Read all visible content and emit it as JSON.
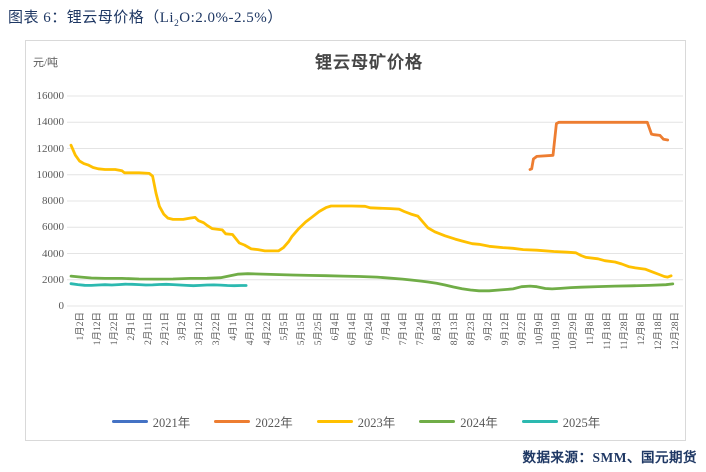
{
  "header": {
    "title_prefix": "图表 6：锂云母价格（Li",
    "title_sub": "2",
    "title_suffix": "O:2.0%-2.5%）"
  },
  "source": {
    "label": "数据来源：SMM、国元期货"
  },
  "chart_data": {
    "type": "line",
    "title": "锂云母矿价格",
    "y_unit": "元/吨",
    "ylim": [
      0,
      16000
    ],
    "y_ticks": [
      0,
      2000,
      4000,
      6000,
      8000,
      10000,
      12000,
      14000,
      16000
    ],
    "grid": "horizontal",
    "legend_position": "bottom",
    "x_tick_labels": [
      "1月2日",
      "1月12日",
      "1月22日",
      "2月1日",
      "2月11日",
      "2月21日",
      "3月2日",
      "3月12日",
      "3月22日",
      "4月1日",
      "4月12日",
      "4月22日",
      "5月5日",
      "5月15日",
      "5月25日",
      "6月4日",
      "6月14日",
      "6月24日",
      "7月4日",
      "7月14日",
      "7月24日",
      "8月3日",
      "8月13日",
      "8月23日",
      "9月2日",
      "9月12日",
      "9月22日",
      "10月9日",
      "10月19日",
      "10月29日",
      "11月8日",
      "11月18日",
      "11月28日",
      "12月8日",
      "12月18日",
      "12月28日"
    ],
    "series": [
      {
        "name": "2021年",
        "color": "#4472C4",
        "points": []
      },
      {
        "name": "2022年",
        "color": "#ED7D31",
        "points": [
          [
            27,
            10400
          ],
          [
            27.1,
            10450
          ],
          [
            27.2,
            11200
          ],
          [
            27.4,
            11400
          ],
          [
            28.35,
            11480
          ],
          [
            28.55,
            13900
          ],
          [
            28.7,
            14000
          ],
          [
            33.9,
            14000
          ],
          [
            34.15,
            13100
          ],
          [
            34.3,
            13050
          ],
          [
            34.65,
            13000
          ],
          [
            34.85,
            12700
          ],
          [
            35.1,
            12650
          ]
        ]
      },
      {
        "name": "2023年",
        "color": "#FFC000",
        "points": [
          [
            0,
            12250
          ],
          [
            0.25,
            11500
          ],
          [
            0.5,
            11050
          ],
          [
            0.75,
            10850
          ],
          [
            1,
            10750
          ],
          [
            1.3,
            10550
          ],
          [
            1.6,
            10450
          ],
          [
            2,
            10400
          ],
          [
            2.6,
            10400
          ],
          [
            3,
            10300
          ],
          [
            3.15,
            10150
          ],
          [
            4,
            10150
          ],
          [
            4.6,
            10100
          ],
          [
            4.8,
            9900
          ],
          [
            5,
            8600
          ],
          [
            5.2,
            7600
          ],
          [
            5.45,
            7000
          ],
          [
            5.7,
            6700
          ],
          [
            6,
            6600
          ],
          [
            6.6,
            6600
          ],
          [
            7,
            6700
          ],
          [
            7.3,
            6750
          ],
          [
            7.5,
            6500
          ],
          [
            7.8,
            6350
          ],
          [
            8,
            6150
          ],
          [
            8.3,
            5900
          ],
          [
            8.9,
            5800
          ],
          [
            9.1,
            5500
          ],
          [
            9.5,
            5450
          ],
          [
            9.9,
            4800
          ],
          [
            10.2,
            4650
          ],
          [
            10.6,
            4350
          ],
          [
            11,
            4300
          ],
          [
            11.4,
            4200
          ],
          [
            12.2,
            4200
          ],
          [
            12.5,
            4450
          ],
          [
            12.8,
            4900
          ],
          [
            13,
            5300
          ],
          [
            13.4,
            5900
          ],
          [
            13.8,
            6400
          ],
          [
            14.2,
            6800
          ],
          [
            14.6,
            7200
          ],
          [
            15,
            7500
          ],
          [
            15.3,
            7620
          ],
          [
            16.5,
            7620
          ],
          [
            17.3,
            7600
          ],
          [
            17.6,
            7480
          ],
          [
            18.1,
            7450
          ],
          [
            18.8,
            7420
          ],
          [
            19.3,
            7380
          ],
          [
            19.6,
            7200
          ],
          [
            20,
            7000
          ],
          [
            20.4,
            6850
          ],
          [
            20.7,
            6400
          ],
          [
            21,
            5950
          ],
          [
            21.4,
            5650
          ],
          [
            22,
            5350
          ],
          [
            22.6,
            5100
          ],
          [
            23,
            4950
          ],
          [
            23.6,
            4750
          ],
          [
            24,
            4700
          ],
          [
            24.6,
            4550
          ],
          [
            25.4,
            4450
          ],
          [
            26,
            4400
          ],
          [
            26.6,
            4300
          ],
          [
            27.4,
            4250
          ],
          [
            28.4,
            4150
          ],
          [
            29.2,
            4100
          ],
          [
            29.7,
            4050
          ],
          [
            30,
            3850
          ],
          [
            30.3,
            3700
          ],
          [
            31,
            3600
          ],
          [
            31.4,
            3450
          ],
          [
            32,
            3350
          ],
          [
            32.4,
            3200
          ],
          [
            32.8,
            3000
          ],
          [
            33.2,
            2900
          ],
          [
            33.8,
            2800
          ],
          [
            34.2,
            2600
          ],
          [
            34.6,
            2400
          ],
          [
            34.9,
            2250
          ],
          [
            35.1,
            2200
          ],
          [
            35.3,
            2300
          ]
        ]
      },
      {
        "name": "2024年",
        "color": "#70AD47",
        "points": [
          [
            0,
            2280
          ],
          [
            0.6,
            2200
          ],
          [
            1.2,
            2130
          ],
          [
            2,
            2100
          ],
          [
            3,
            2100
          ],
          [
            4,
            2060
          ],
          [
            5,
            2050
          ],
          [
            6,
            2060
          ],
          [
            7,
            2100
          ],
          [
            8,
            2110
          ],
          [
            8.8,
            2160
          ],
          [
            9.4,
            2320
          ],
          [
            9.8,
            2420
          ],
          [
            10.4,
            2460
          ],
          [
            11,
            2440
          ],
          [
            12,
            2400
          ],
          [
            13,
            2360
          ],
          [
            14,
            2330
          ],
          [
            15,
            2310
          ],
          [
            16,
            2280
          ],
          [
            17,
            2250
          ],
          [
            18,
            2200
          ],
          [
            18.8,
            2120
          ],
          [
            19.5,
            2050
          ],
          [
            20,
            1980
          ],
          [
            20.6,
            1900
          ],
          [
            21,
            1830
          ],
          [
            21.5,
            1730
          ],
          [
            22,
            1600
          ],
          [
            22.5,
            1450
          ],
          [
            23,
            1320
          ],
          [
            23.5,
            1220
          ],
          [
            24,
            1160
          ],
          [
            24.6,
            1160
          ],
          [
            25.2,
            1220
          ],
          [
            26,
            1300
          ],
          [
            26.5,
            1470
          ],
          [
            27,
            1520
          ],
          [
            27.4,
            1470
          ],
          [
            27.9,
            1330
          ],
          [
            28.3,
            1300
          ],
          [
            28.8,
            1340
          ],
          [
            29.4,
            1400
          ],
          [
            30,
            1430
          ],
          [
            31,
            1480
          ],
          [
            32,
            1520
          ],
          [
            33,
            1540
          ],
          [
            34,
            1570
          ],
          [
            35,
            1620
          ],
          [
            35.4,
            1680
          ]
        ]
      },
      {
        "name": "2025年",
        "color": "#2CB9B0",
        "points": [
          [
            0,
            1700
          ],
          [
            0.4,
            1630
          ],
          [
            0.8,
            1580
          ],
          [
            1.2,
            1570
          ],
          [
            1.6,
            1600
          ],
          [
            2,
            1620
          ],
          [
            2.4,
            1600
          ],
          [
            2.8,
            1630
          ],
          [
            3.2,
            1660
          ],
          [
            3.6,
            1650
          ],
          [
            4,
            1630
          ],
          [
            4.4,
            1600
          ],
          [
            4.8,
            1610
          ],
          [
            5.2,
            1640
          ],
          [
            5.6,
            1650
          ],
          [
            6,
            1630
          ],
          [
            6.4,
            1600
          ],
          [
            6.8,
            1570
          ],
          [
            7.2,
            1550
          ],
          [
            7.6,
            1570
          ],
          [
            8,
            1600
          ],
          [
            8.4,
            1610
          ],
          [
            8.8,
            1590
          ],
          [
            9.2,
            1560
          ],
          [
            9.6,
            1550
          ],
          [
            10,
            1560
          ],
          [
            10.3,
            1560
          ]
        ]
      }
    ]
  }
}
